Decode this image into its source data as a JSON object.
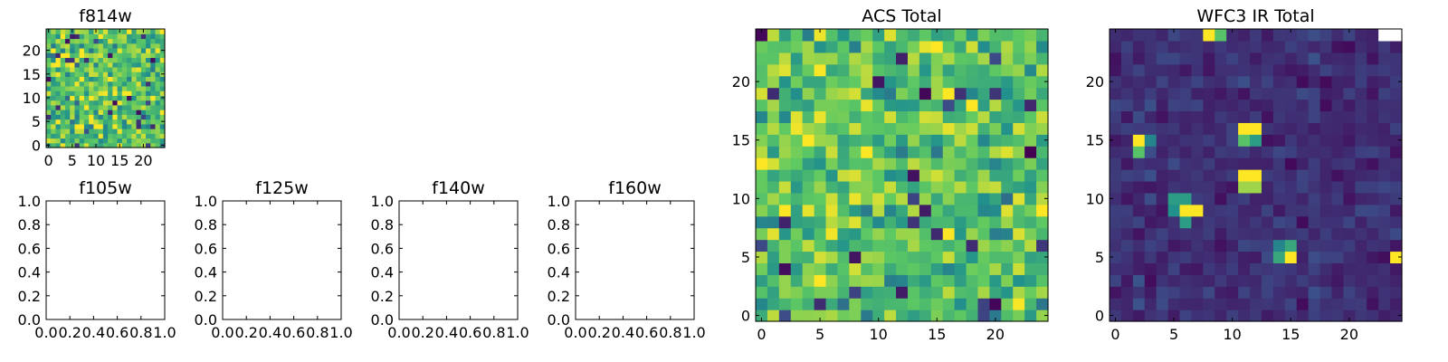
{
  "colors": {
    "background": "#ffffff",
    "axes": "#000000",
    "colormap": "viridis",
    "colormap_stops": [
      "#440154",
      "#3b528b",
      "#21918c",
      "#5ec962",
      "#fde725"
    ]
  },
  "chart_data": [
    {
      "id": "f814w",
      "type": "heatmap",
      "title": "f814w",
      "xlabel": "",
      "ylabel": "",
      "grid": false,
      "xlim": [
        -0.5,
        24.5
      ],
      "ylim": [
        -0.5,
        24.5
      ],
      "x_ticks": [
        0,
        5,
        10,
        15,
        20
      ],
      "x_tick_labels": [
        "0",
        "5",
        "10",
        "15",
        "20"
      ],
      "y_ticks": [
        0,
        5,
        10,
        15,
        20
      ],
      "y_tick_labels": [
        "0",
        "5",
        "10",
        "15",
        "20"
      ],
      "colormap": "viridis",
      "rows": 25,
      "cols": 25,
      "value_range": [
        0,
        1
      ],
      "seed": 814,
      "background_level": 0.72,
      "noise": 0.22,
      "note_values": "25x25 pixel grid of random noise; individual cell values are not legible"
    },
    {
      "id": "f105w",
      "type": "heatmap",
      "title": "f105w",
      "grid": false,
      "xlim": [
        0,
        1
      ],
      "ylim": [
        0,
        1
      ],
      "x_ticks": [
        0,
        0.2,
        0.4,
        0.6,
        0.8,
        1.0
      ],
      "x_tick_labels": [
        "0.0",
        "0.2",
        "0.4",
        "0.6",
        "0.8",
        "1.0"
      ],
      "y_ticks": [
        0,
        0.2,
        0.4,
        0.6,
        0.8,
        1.0
      ],
      "y_tick_labels": [
        "0.0",
        "0.2",
        "0.4",
        "0.6",
        "0.8",
        "1.0"
      ],
      "rows": 0,
      "cols": 0,
      "note_values": "empty axes"
    },
    {
      "id": "f125w",
      "type": "heatmap",
      "title": "f125w",
      "grid": false,
      "xlim": [
        0,
        1
      ],
      "ylim": [
        0,
        1
      ],
      "x_ticks": [
        0,
        0.2,
        0.4,
        0.6,
        0.8,
        1.0
      ],
      "x_tick_labels": [
        "0.0",
        "0.2",
        "0.4",
        "0.6",
        "0.8",
        "1.0"
      ],
      "y_ticks": [
        0,
        0.2,
        0.4,
        0.6,
        0.8,
        1.0
      ],
      "y_tick_labels": [
        "0.0",
        "0.2",
        "0.4",
        "0.6",
        "0.8",
        "1.0"
      ],
      "rows": 0,
      "cols": 0,
      "note_values": "empty axes"
    },
    {
      "id": "f140w",
      "type": "heatmap",
      "title": "f140w",
      "grid": false,
      "xlim": [
        0,
        1
      ],
      "ylim": [
        0,
        1
      ],
      "x_ticks": [
        0,
        0.2,
        0.4,
        0.6,
        0.8,
        1.0
      ],
      "x_tick_labels": [
        "0.0",
        "0.2",
        "0.4",
        "0.6",
        "0.8",
        "1.0"
      ],
      "y_ticks": [
        0,
        0.2,
        0.4,
        0.6,
        0.8,
        1.0
      ],
      "y_tick_labels": [
        "0.0",
        "0.2",
        "0.4",
        "0.6",
        "0.8",
        "1.0"
      ],
      "rows": 0,
      "cols": 0,
      "note_values": "empty axes"
    },
    {
      "id": "f160w",
      "type": "heatmap",
      "title": "f160w",
      "grid": false,
      "xlim": [
        0,
        1
      ],
      "ylim": [
        0,
        1
      ],
      "x_ticks": [
        0,
        0.2,
        0.4,
        0.6,
        0.8,
        1.0
      ],
      "x_tick_labels": [
        "0.0",
        "0.2",
        "0.4",
        "0.6",
        "0.8",
        "1.0"
      ],
      "y_ticks": [
        0,
        0.2,
        0.4,
        0.6,
        0.8,
        1.0
      ],
      "y_tick_labels": [
        "0.0",
        "0.2",
        "0.4",
        "0.6",
        "0.8",
        "1.0"
      ],
      "rows": 0,
      "cols": 0,
      "note_values": "empty axes"
    },
    {
      "id": "acs-total",
      "type": "heatmap",
      "title": "ACS Total",
      "grid": false,
      "xlim": [
        -0.5,
        24.5
      ],
      "ylim": [
        -0.5,
        24.5
      ],
      "x_ticks": [
        0,
        5,
        10,
        15,
        20
      ],
      "x_tick_labels": [
        "0",
        "5",
        "10",
        "15",
        "20"
      ],
      "y_ticks": [
        0,
        5,
        10,
        15,
        20
      ],
      "y_tick_labels": [
        "0",
        "5",
        "10",
        "15",
        "20"
      ],
      "colormap": "viridis",
      "rows": 25,
      "cols": 25,
      "value_range": [
        0,
        1
      ],
      "seed": 2017,
      "background_level": 0.72,
      "noise": 0.2,
      "note_values": "25x25 pixel grid of random noise; individual cell values are not legible"
    },
    {
      "id": "wfc3-ir-total",
      "type": "heatmap",
      "title": "WFC3 IR Total",
      "grid": false,
      "xlim": [
        -0.5,
        24.5
      ],
      "ylim": [
        -0.5,
        24.5
      ],
      "x_ticks": [
        0,
        5,
        10,
        15,
        20
      ],
      "x_tick_labels": [
        "0",
        "5",
        "10",
        "15",
        "20"
      ],
      "y_ticks": [
        0,
        5,
        10,
        15,
        20
      ],
      "y_tick_labels": [
        "0",
        "5",
        "10",
        "15",
        "20"
      ],
      "colormap": "viridis",
      "rows": 25,
      "cols": 25,
      "value_range": [
        0,
        1
      ],
      "seed": 3160,
      "background_level": 0.14,
      "noise": 0.06,
      "bright_cells": [
        {
          "x": 8,
          "y": 24,
          "value": 1.0
        },
        {
          "x": 9,
          "y": 24,
          "value": 0.72
        },
        {
          "x": 23,
          "y": 24,
          "value": 1.0,
          "color": "#ffffff"
        },
        {
          "x": 24,
          "y": 24,
          "value": 1.0,
          "color": "#ffffff"
        },
        {
          "x": 2,
          "y": 15,
          "value": 1.0
        },
        {
          "x": 3,
          "y": 15,
          "value": 0.45
        },
        {
          "x": 2,
          "y": 14,
          "value": 0.72
        },
        {
          "x": 11,
          "y": 16,
          "value": 1.0
        },
        {
          "x": 12,
          "y": 16,
          "value": 1.0
        },
        {
          "x": 11,
          "y": 15,
          "value": 0.72
        },
        {
          "x": 12,
          "y": 15,
          "value": 0.55
        },
        {
          "x": 11,
          "y": 12,
          "value": 1.0
        },
        {
          "x": 12,
          "y": 12,
          "value": 1.0
        },
        {
          "x": 11,
          "y": 11,
          "value": 0.85
        },
        {
          "x": 12,
          "y": 11,
          "value": 0.85
        },
        {
          "x": 5,
          "y": 10,
          "value": 0.55
        },
        {
          "x": 6,
          "y": 10,
          "value": 0.55
        },
        {
          "x": 5,
          "y": 9,
          "value": 0.5
        },
        {
          "x": 6,
          "y": 9,
          "value": 1.0
        },
        {
          "x": 7,
          "y": 9,
          "value": 1.0
        },
        {
          "x": 6,
          "y": 8,
          "value": 0.55
        },
        {
          "x": 14,
          "y": 6,
          "value": 0.45
        },
        {
          "x": 15,
          "y": 6,
          "value": 0.6
        },
        {
          "x": 14,
          "y": 5,
          "value": 0.6
        },
        {
          "x": 15,
          "y": 5,
          "value": 1.0
        },
        {
          "x": 24,
          "y": 5,
          "value": 1.0
        }
      ],
      "note_values": "25x25 pixel grid of dark noise with a few bright sources; individual cell values are not legible"
    }
  ]
}
